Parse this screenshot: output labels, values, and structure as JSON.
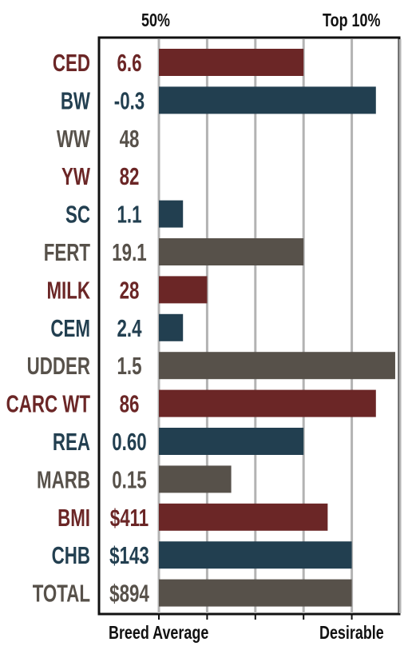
{
  "chart_data": {
    "type": "bar",
    "orientation": "horizontal",
    "header_left": "50%",
    "header_right": "Top 10%",
    "footer_left": "Breed Average",
    "footer_right": "Desirable",
    "xlim": [
      0,
      5
    ],
    "gridlines": [
      0,
      1,
      2,
      3,
      4,
      5
    ],
    "colors": {
      "red": "#6b2626",
      "blue": "#223f50",
      "brown": "#57514a",
      "grid": "#b3b3b3",
      "frame": "#111111"
    },
    "rows": [
      {
        "label": "CED",
        "value_text": "6.6",
        "bar": 3.0,
        "color": "red"
      },
      {
        "label": "BW",
        "value_text": "-0.3",
        "bar": 4.5,
        "color": "blue"
      },
      {
        "label": "WW",
        "value_text": "48",
        "bar": 0,
        "color": "brown"
      },
      {
        "label": "YW",
        "value_text": "82",
        "bar": 0,
        "color": "red"
      },
      {
        "label": "SC",
        "value_text": "1.1",
        "bar": 0.5,
        "color": "blue"
      },
      {
        "label": "FERT",
        "value_text": "19.1",
        "bar": 3.0,
        "color": "brown"
      },
      {
        "label": "MILK",
        "value_text": "28",
        "bar": 1.0,
        "color": "red"
      },
      {
        "label": "CEM",
        "value_text": "2.4",
        "bar": 0.5,
        "color": "blue"
      },
      {
        "label": "UDDER",
        "value_text": "1.5",
        "bar": 4.9,
        "color": "brown"
      },
      {
        "label": "CARC WT",
        "value_text": "86",
        "bar": 4.5,
        "color": "red"
      },
      {
        "label": "REA",
        "value_text": "0.60",
        "bar": 3.0,
        "color": "blue"
      },
      {
        "label": "MARB",
        "value_text": "0.15",
        "bar": 1.5,
        "color": "brown"
      },
      {
        "label": "BMI",
        "value_text": "$411",
        "bar": 3.5,
        "color": "red"
      },
      {
        "label": "CHB",
        "value_text": "$143",
        "bar": 4.0,
        "color": "blue"
      },
      {
        "label": "TOTAL",
        "value_text": "$894",
        "bar": 4.0,
        "color": "brown"
      }
    ]
  }
}
